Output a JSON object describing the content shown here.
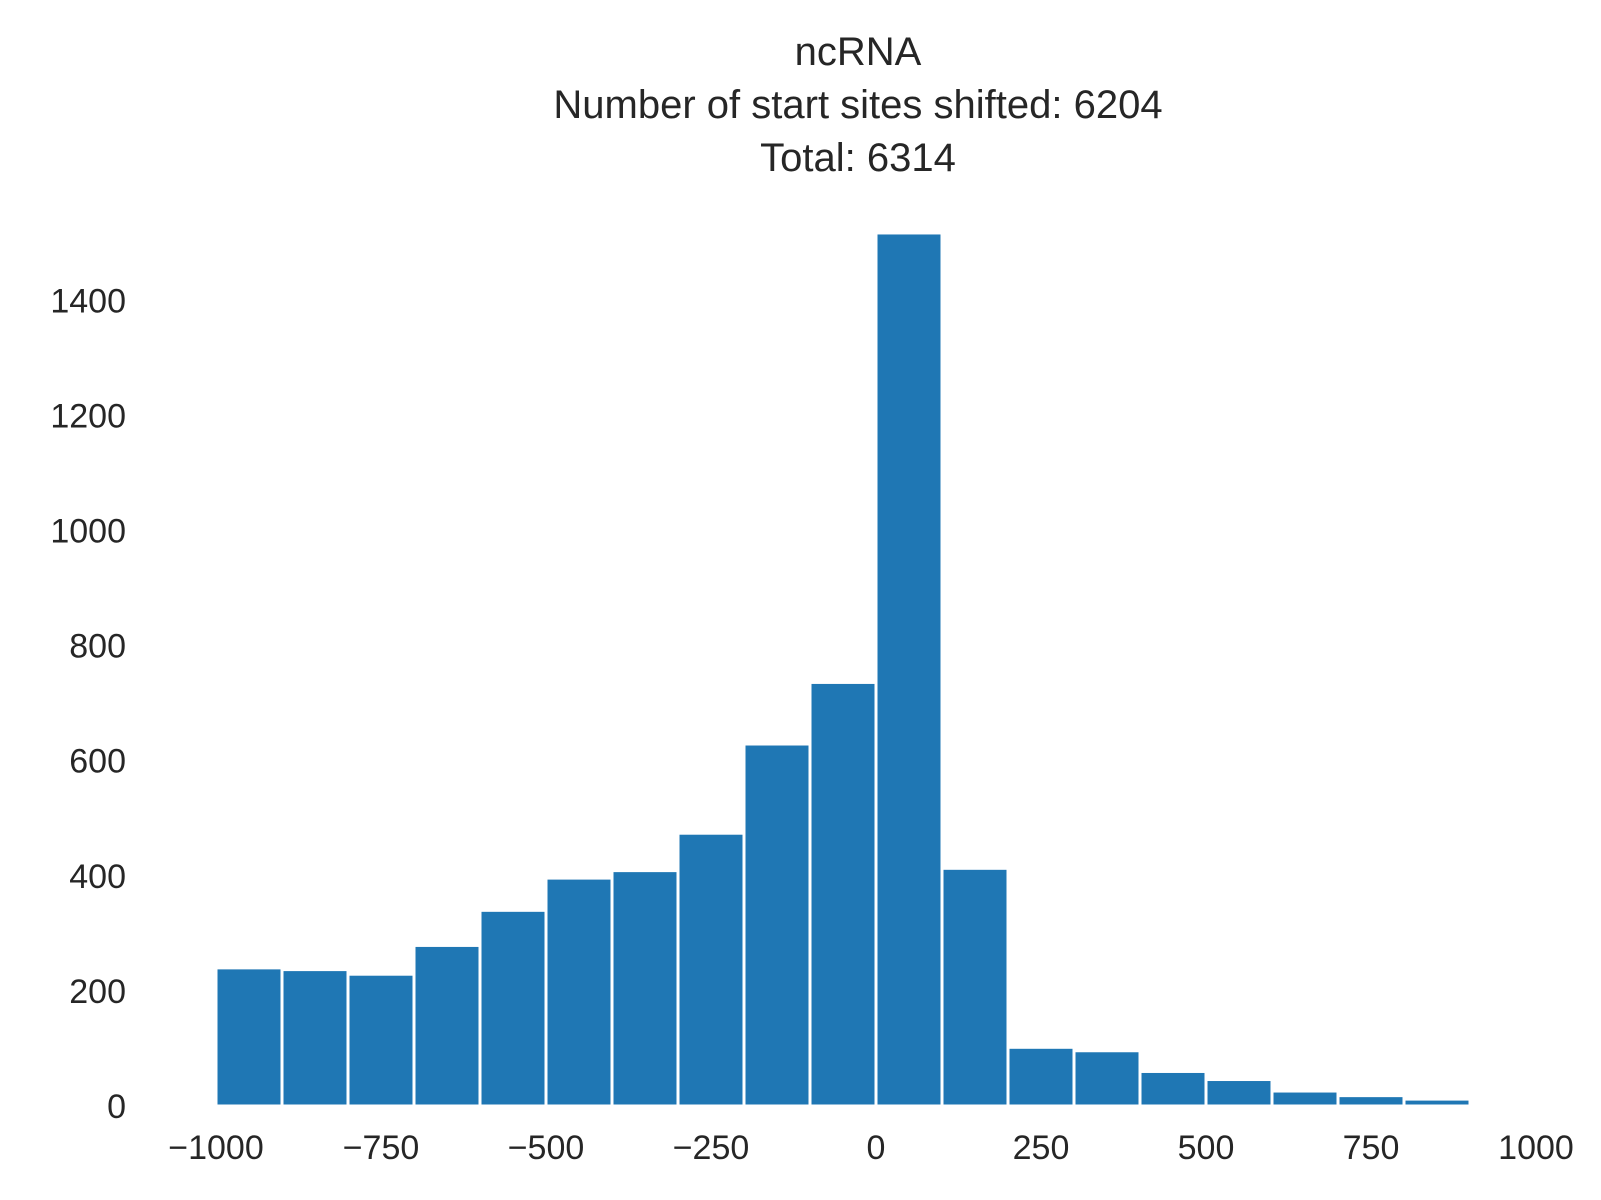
{
  "chart_data": {
    "type": "bar",
    "title_lines": [
      "ncRNA",
      "Number of start sites shifted: 6204",
      "Total: 6314"
    ],
    "xlabel": "",
    "ylabel": "",
    "xlim": [
      -1000,
      1000
    ],
    "ylim": [
      0,
      1510
    ],
    "grid": false,
    "legend": "none",
    "bar_color": "#1f77b4",
    "bin_width": 100,
    "bins": [
      {
        "x0": -1000,
        "x1": -900,
        "value": 240
      },
      {
        "x0": -900,
        "x1": -800,
        "value": 237
      },
      {
        "x0": -800,
        "x1": -700,
        "value": 229
      },
      {
        "x0": -700,
        "x1": -600,
        "value": 279
      },
      {
        "x0": -600,
        "x1": -500,
        "value": 340
      },
      {
        "x0": -500,
        "x1": -400,
        "value": 396
      },
      {
        "x0": -400,
        "x1": -300,
        "value": 409
      },
      {
        "x0": -300,
        "x1": -200,
        "value": 474
      },
      {
        "x0": -200,
        "x1": -100,
        "value": 629
      },
      {
        "x0": -100,
        "x1": 0,
        "value": 736
      },
      {
        "x0": 0,
        "x1": 100,
        "value": 1517
      },
      {
        "x0": 100,
        "x1": 200,
        "value": 413
      },
      {
        "x0": 200,
        "x1": 300,
        "value": 102
      },
      {
        "x0": 300,
        "x1": 400,
        "value": 96
      },
      {
        "x0": 400,
        "x1": 500,
        "value": 60
      },
      {
        "x0": 500,
        "x1": 600,
        "value": 46
      },
      {
        "x0": 600,
        "x1": 700,
        "value": 26
      },
      {
        "x0": 700,
        "x1": 800,
        "value": 18
      },
      {
        "x0": 800,
        "x1": 900,
        "value": 12
      }
    ],
    "x_ticks": [
      {
        "value": -1000,
        "label": "−1000"
      },
      {
        "value": -750,
        "label": "−750"
      },
      {
        "value": -500,
        "label": "−500"
      },
      {
        "value": -250,
        "label": "−250"
      },
      {
        "value": 0,
        "label": "0"
      },
      {
        "value": 250,
        "label": "250"
      },
      {
        "value": 500,
        "label": "500"
      },
      {
        "value": 750,
        "label": "750"
      },
      {
        "value": 1000,
        "label": "1000"
      }
    ],
    "y_ticks": [
      {
        "value": 0,
        "label": "0"
      },
      {
        "value": 200,
        "label": "200"
      },
      {
        "value": 400,
        "label": "400"
      },
      {
        "value": 600,
        "label": "600"
      },
      {
        "value": 800,
        "label": "800"
      },
      {
        "value": 1000,
        "label": "1000"
      },
      {
        "value": 1200,
        "label": "1200"
      },
      {
        "value": 1400,
        "label": "1400"
      }
    ]
  }
}
